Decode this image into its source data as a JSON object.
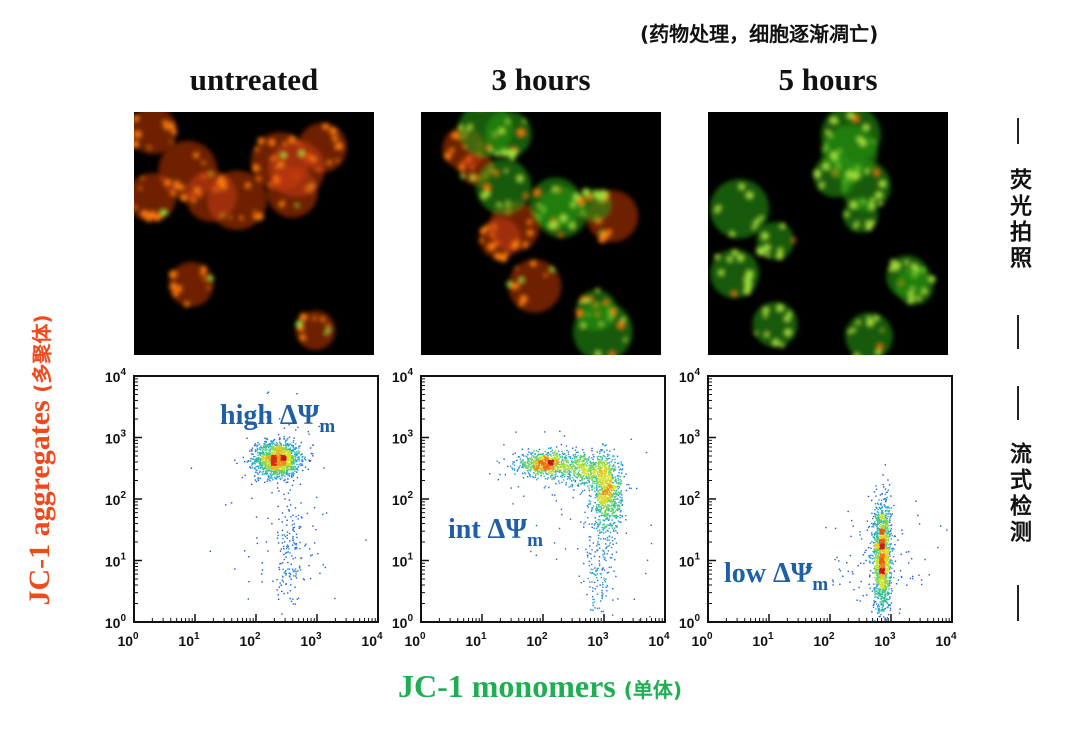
{
  "caption_top": "(药物处理，细胞逐渐凋亡)",
  "side_labels": {
    "microscopy": "荧光拍照",
    "flow": "流式检测"
  },
  "y_axis_label": "JC-1 aggregates",
  "y_axis_label_cn": "(多聚体)",
  "x_axis_label": "JC-1 monomers",
  "x_axis_label_cn": "(单体)",
  "colors": {
    "aggregate_red": "#f04a1c",
    "monomer_green": "#1fae54",
    "label_blue": "#1f5fa6"
  },
  "panels": [
    {
      "title": "untreated",
      "population_label": "high ΔΨ",
      "population_sub": "m"
    },
    {
      "title": "3 hours",
      "population_label": "int ΔΨ",
      "population_sub": "m"
    },
    {
      "title": "5 hours",
      "population_label": "low ΔΨ",
      "population_sub": "m"
    }
  ],
  "chart_data": [
    {
      "type": "scatter",
      "title": "untreated",
      "xlabel": "JC-1 monomers",
      "ylabel": "JC-1 aggregates",
      "xscale": "log",
      "yscale": "log",
      "xlim": [
        1,
        10000
      ],
      "ylim": [
        1,
        10000
      ],
      "x_ticks": [
        "10^0",
        "10^1",
        "10^2",
        "10^3",
        "10^4"
      ],
      "y_ticks": [
        "10^0",
        "10^1",
        "10^2",
        "10^3",
        "10^4"
      ],
      "annotation": "high ΔΨm",
      "clusters": [
        {
          "center": [
            220,
            450
          ],
          "spread_log": [
            0.18,
            0.14
          ],
          "density": "high",
          "n": 1400
        },
        {
          "center": [
            350,
            12
          ],
          "spread_log": [
            0.1,
            0.6
          ],
          "density": "low",
          "n": 140
        }
      ]
    },
    {
      "type": "scatter",
      "title": "3 hours",
      "xlabel": "JC-1 monomers",
      "ylabel": "JC-1 aggregates",
      "xscale": "log",
      "yscale": "log",
      "xlim": [
        1,
        10000
      ],
      "ylim": [
        1,
        10000
      ],
      "x_ticks": [
        "10^0",
        "10^1",
        "10^2",
        "10^3",
        "10^4"
      ],
      "y_ticks": [
        "10^0",
        "10^1",
        "10^2",
        "10^3",
        "10^4"
      ],
      "annotation": "int ΔΨm",
      "clusters": [
        {
          "center": [
            110,
            380
          ],
          "spread_log": [
            0.25,
            0.1
          ],
          "density": "high",
          "n": 700
        },
        {
          "center": [
            500,
            300
          ],
          "spread_log": [
            0.25,
            0.12
          ],
          "density": "high",
          "n": 500
        },
        {
          "center": [
            1100,
            120
          ],
          "spread_log": [
            0.12,
            0.3
          ],
          "density": "high",
          "n": 800
        },
        {
          "center": [
            800,
            8
          ],
          "spread_log": [
            0.12,
            0.5
          ],
          "density": "low",
          "n": 150
        }
      ]
    },
    {
      "type": "scatter",
      "title": "5 hours",
      "xlabel": "JC-1 monomers",
      "ylabel": "JC-1 aggregates",
      "xscale": "log",
      "yscale": "log",
      "xlim": [
        1,
        10000
      ],
      "ylim": [
        1,
        10000
      ],
      "x_ticks": [
        "10^0",
        "10^1",
        "10^2",
        "10^3",
        "10^4"
      ],
      "y_ticks": [
        "10^0",
        "10^1",
        "10^2",
        "10^3",
        "10^4"
      ],
      "annotation": "low ΔΨm",
      "clusters": [
        {
          "center": [
            700,
            12
          ],
          "spread_log": [
            0.07,
            0.45
          ],
          "density": "high",
          "n": 1500
        }
      ]
    }
  ]
}
